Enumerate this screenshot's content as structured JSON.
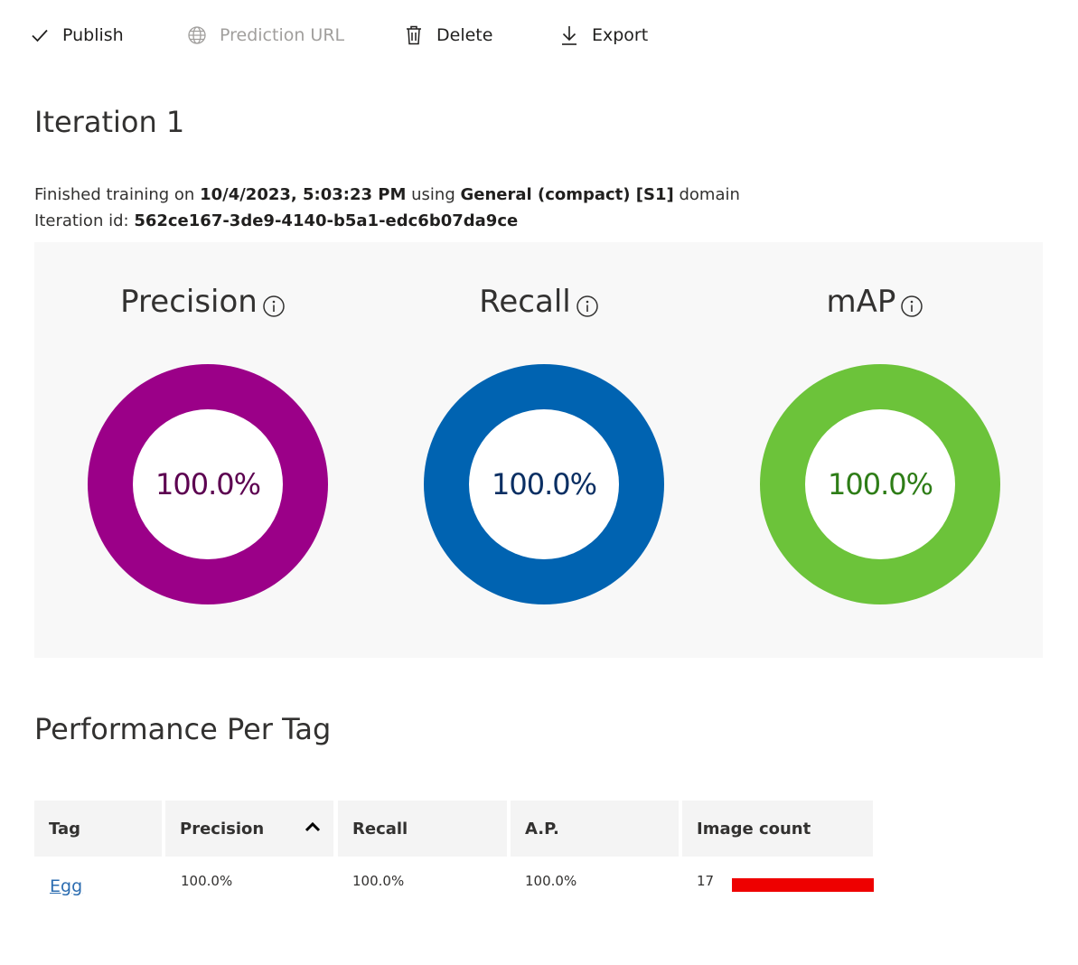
{
  "toolbar": {
    "publish": "Publish",
    "prediction_url": "Prediction URL",
    "delete": "Delete",
    "export": "Export"
  },
  "iteration": {
    "title": "Iteration 1",
    "finished_prefix": "Finished training on",
    "finished_date": "10/4/2023, 5:03:23 PM",
    "using": "using",
    "domain_name": "General (compact) [S1]",
    "domain_suffix": "domain",
    "id_label": "Iteration id:",
    "id_value": "562ce167-3de9-4140-b5a1-edc6b07da9ce"
  },
  "metrics": [
    {
      "title": "Precision",
      "value": "100.0%",
      "ring_color": "#9b0088",
      "text_color": "#5c0050",
      "icon": "info-icon"
    },
    {
      "title": "Recall",
      "value": "100.0%",
      "ring_color": "#0063b1",
      "text_color": "#0a2f63",
      "icon": "info-icon"
    },
    {
      "title": "mAP",
      "value": "100.0%",
      "ring_color": "#6cc33a",
      "text_color": "#2e7d17",
      "icon": "info-icon"
    }
  ],
  "performance": {
    "title": "Performance Per Tag",
    "columns": [
      "Tag",
      "Precision",
      "Recall",
      "A.P.",
      "Image count"
    ],
    "sorted_column": "Precision",
    "sort_icon": "chevron-up-icon",
    "rows": [
      {
        "tag": "Egg",
        "precision": "100.0%",
        "recall": "100.0%",
        "ap": "100.0%",
        "image_count": "17",
        "count_fraction": 1.0
      }
    ],
    "bar_color": "#ee0000"
  }
}
